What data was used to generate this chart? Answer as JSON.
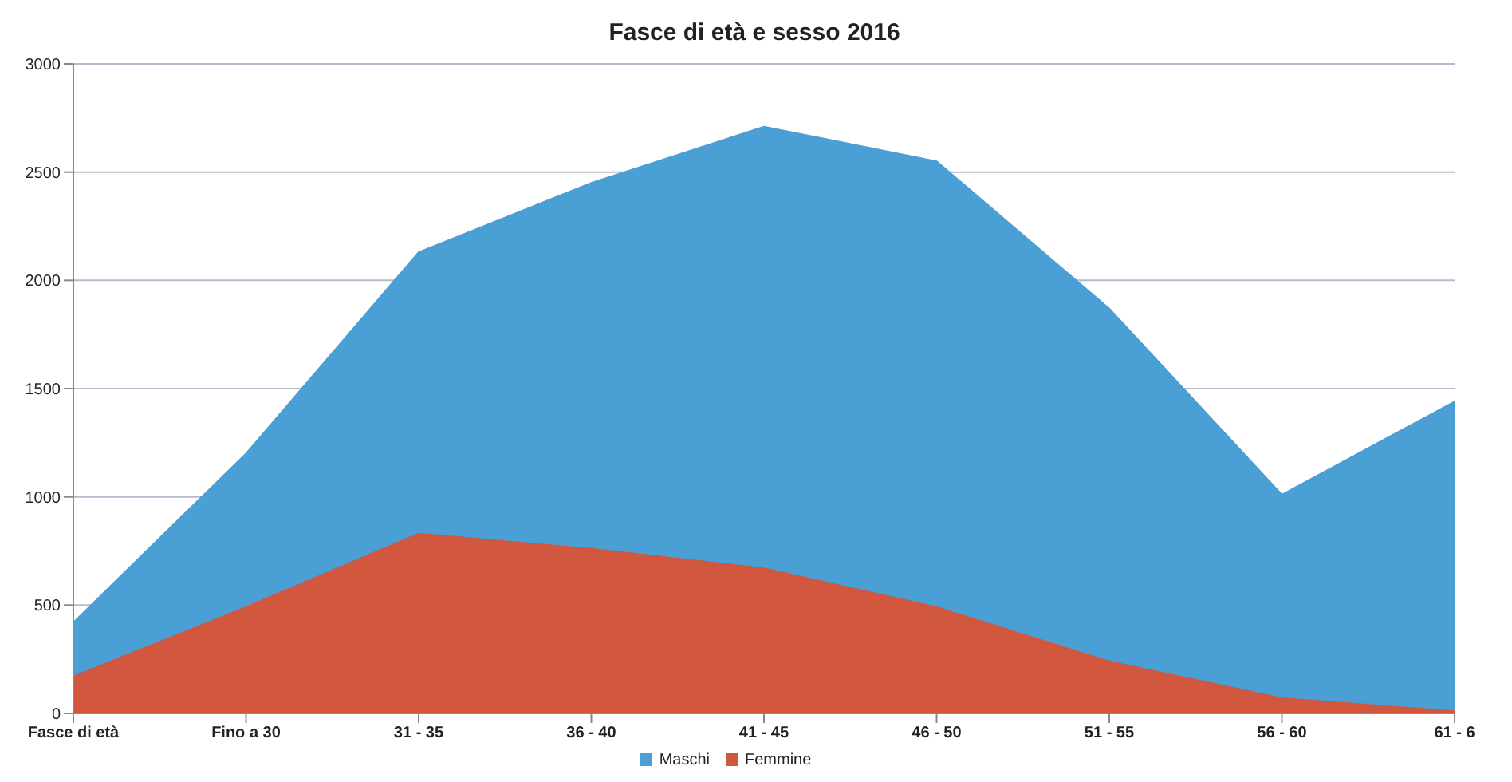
{
  "chart_data": {
    "type": "area",
    "title": "Fasce di età e sesso 2016",
    "categories": [
      "Fasce di età",
      "Fino a 30",
      "31 - 35",
      "36 - 40",
      "41 - 45",
      "46 - 50",
      "51 - 55",
      "56 - 60",
      "61 - 6"
    ],
    "series": [
      {
        "name": "Maschi",
        "color": "#4a9fd4",
        "values": [
          420,
          1200,
          2130,
          2450,
          2710,
          2550,
          1870,
          1010,
          1440
        ]
      },
      {
        "name": "Femmine",
        "color": "#d2573f",
        "values": [
          170,
          490,
          830,
          760,
          670,
          490,
          240,
          70,
          10
        ]
      }
    ],
    "ylim": [
      0,
      3000
    ],
    "yticks": [
      0,
      500,
      1000,
      1500,
      2000,
      2500,
      3000
    ],
    "grid": "y",
    "legend": "bottom"
  }
}
